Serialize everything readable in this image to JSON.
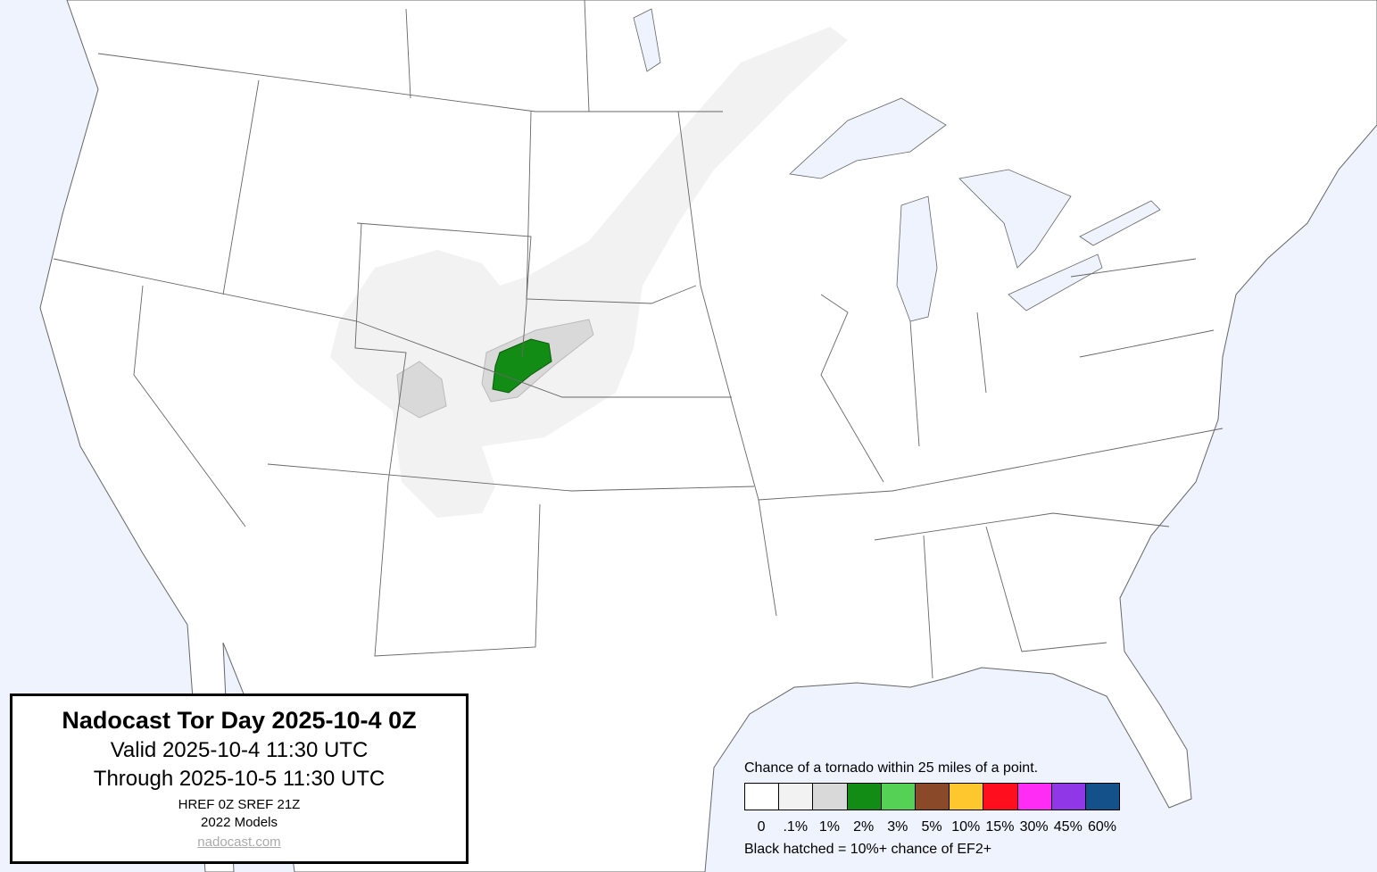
{
  "title": {
    "heading": "Nadocast Tor Day 2025-10-4 0Z",
    "valid": "Valid 2025-10-4 11:30 UTC",
    "through": "Through 2025-10-5 11:30 UTC",
    "models_run": "HREF 0Z SREF 21Z",
    "models_version": "2022 Models",
    "link": "nadocast.com"
  },
  "legend": {
    "caption": "Chance of a tornado within 25 miles of a point.",
    "bins": [
      {
        "label": "0",
        "color": "#ffffff"
      },
      {
        "label": ".1%",
        "color": "#f2f2f2"
      },
      {
        "label": "1%",
        "color": "#d9d9d9"
      },
      {
        "label": "2%",
        "color": "#128c15"
      },
      {
        "label": "3%",
        "color": "#55d155"
      },
      {
        "label": "5%",
        "color": "#8a4a2a"
      },
      {
        "label": "10%",
        "color": "#ffc72e"
      },
      {
        "label": "15%",
        "color": "#ff0e1e"
      },
      {
        "label": "30%",
        "color": "#ff2cf5"
      },
      {
        "label": "45%",
        "color": "#9038e8"
      },
      {
        "label": "60%",
        "color": "#14508a"
      }
    ],
    "note": "Black hatched = 10%+ chance of EF2+"
  },
  "colors": {
    "water": "#eef3fe",
    "land": "#ffffff",
    "borders": "#555555"
  }
}
